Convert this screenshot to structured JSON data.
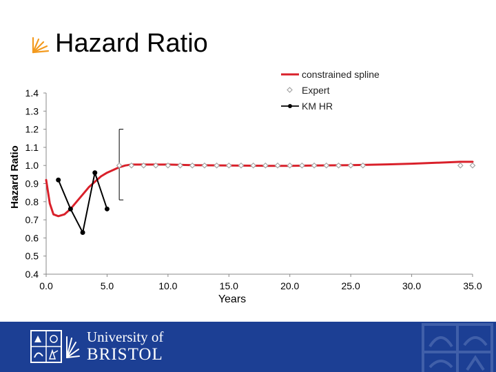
{
  "slide": {
    "title": "Hazard Ratio"
  },
  "footer": {
    "university_line1": "University of",
    "university_line2": "BRISTOL"
  },
  "colors": {
    "spline": "#d9202a",
    "expert": "#a6a6a6",
    "km": "#000000",
    "footer_bg": "#1c3f94"
  },
  "icons": {
    "title_bullet": "fan-bullet-icon",
    "crest": "university-crest-icon",
    "watermark": "crest-watermark-icon"
  },
  "chart_data": {
    "type": "line",
    "xlabel": "Years",
    "ylabel": "Hazard Ratio",
    "xlim": [
      0,
      35
    ],
    "ylim": [
      0.4,
      1.4
    ],
    "x_ticks": [
      "0.0",
      "5.0",
      "10.0",
      "15.0",
      "20.0",
      "25.0",
      "30.0",
      "35.0"
    ],
    "y_ticks": [
      "0.4",
      "0.5",
      "0.6",
      "0.7",
      "0.8",
      "0.9",
      "1.0",
      "1.1",
      "1.2",
      "1.3",
      "1.4"
    ],
    "legend_position": "top-right",
    "series": [
      {
        "name": "constrained spline",
        "style": "line",
        "x": [
          0.0,
          0.3,
          0.6,
          1.0,
          1.5,
          2.0,
          2.5,
          3.0,
          3.5,
          4.0,
          4.5,
          5.0,
          5.5,
          6.0,
          6.5,
          7.0,
          8.0,
          9.0,
          10.0,
          12.0,
          15.0,
          18.0,
          20.0,
          22.0,
          25.0,
          28.0,
          30.0,
          32.0,
          34.0,
          35.0
        ],
        "y": [
          0.92,
          0.79,
          0.73,
          0.72,
          0.73,
          0.76,
          0.8,
          0.84,
          0.88,
          0.91,
          0.94,
          0.96,
          0.975,
          0.99,
          1.0,
          1.005,
          1.005,
          1.005,
          1.005,
          1.002,
          1.0,
          0.998,
          0.998,
          1.0,
          1.002,
          1.006,
          1.01,
          1.015,
          1.02,
          1.02
        ]
      },
      {
        "name": "Expert",
        "style": "markers",
        "x": [
          6,
          7,
          8,
          9,
          10,
          11,
          12,
          13,
          14,
          15,
          16,
          17,
          18,
          19,
          20,
          21,
          22,
          23,
          24,
          25,
          26,
          34,
          35
        ],
        "y": [
          1.0,
          1.0,
          1.0,
          1.0,
          1.0,
          1.0,
          1.0,
          1.0,
          1.0,
          1.0,
          1.0,
          1.0,
          1.0,
          1.0,
          1.0,
          1.0,
          1.0,
          1.0,
          1.0,
          1.0,
          1.0,
          1.0,
          1.0
        ]
      },
      {
        "name": "KM HR",
        "style": "line-markers",
        "x": [
          1,
          2,
          3,
          4,
          5
        ],
        "y": [
          0.92,
          0.76,
          0.63,
          0.96,
          0.76
        ]
      }
    ],
    "error_bar": {
      "x": 6,
      "low": 0.81,
      "high": 1.2
    }
  }
}
